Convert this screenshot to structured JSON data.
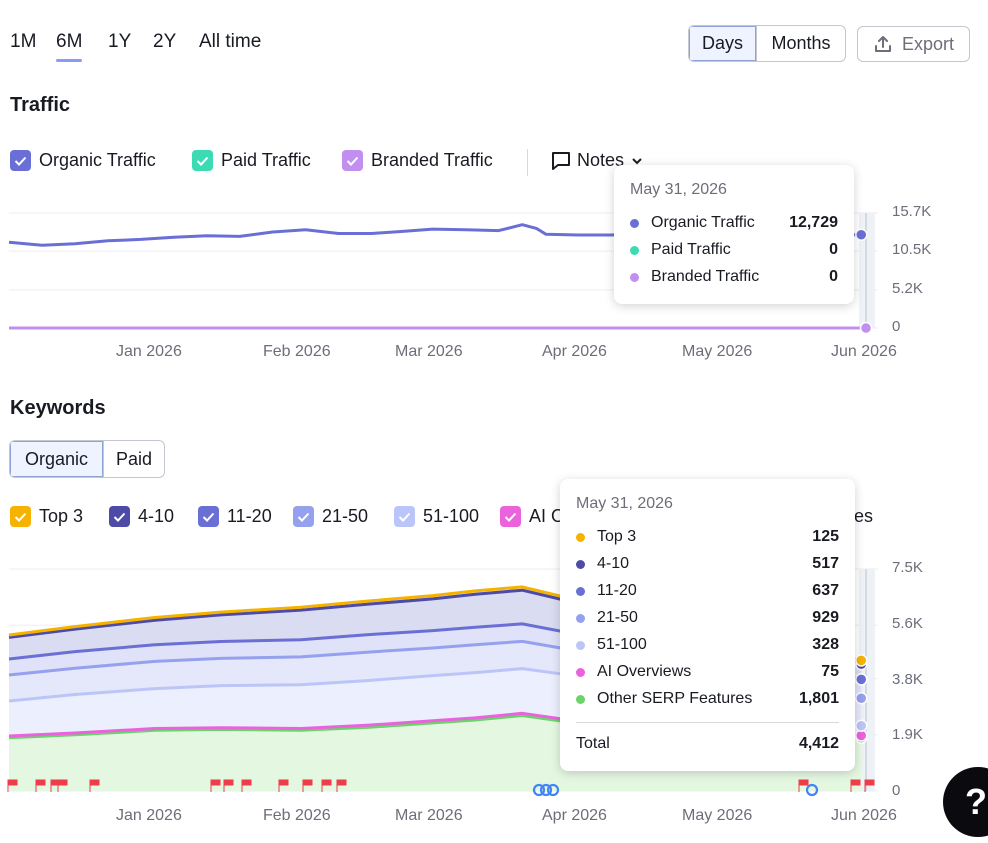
{
  "periods": {
    "p1m": "1M",
    "p6m": "6M",
    "p1y": "1Y",
    "p2y": "2Y",
    "all": "All time",
    "active": "6M"
  },
  "granularity": {
    "days": "Days",
    "months": "Months",
    "active": "Days"
  },
  "export": {
    "label": "Export",
    "icon": "upload-icon"
  },
  "traffic": {
    "title": "Traffic",
    "legend": {
      "organic": "Organic Traffic",
      "paid": "Paid Traffic",
      "branded": "Branded Traffic",
      "notes": "Notes"
    },
    "tooltip": {
      "date": "May 31, 2026",
      "rows": [
        {
          "label": "Organic Traffic",
          "value": "12,729",
          "color": "#6a6fd6"
        },
        {
          "label": "Paid Traffic",
          "value": "0",
          "color": "#3ddbb4"
        },
        {
          "label": "Branded Traffic",
          "value": "0",
          "color": "#c18ff0"
        }
      ]
    },
    "y_ticks": [
      "15.7K",
      "10.5K",
      "5.2K",
      "0"
    ],
    "x_ticks": [
      "Jan 2026",
      "Feb 2026",
      "Mar 2026",
      "Apr 2026",
      "May 2026",
      "Jun 2026"
    ]
  },
  "keywords": {
    "title": "Keywords",
    "tabs": {
      "organic": "Organic",
      "paid": "Paid",
      "active": "Organic"
    },
    "legend": {
      "top3": "Top 3",
      "r4_10": "4-10",
      "r11_20": "11-20",
      "r21_50": "21-50",
      "r51_100": "51-100",
      "ai_partial": "AI O",
      "serp_partial": "res"
    },
    "tooltip": {
      "date": "May 31, 2026",
      "rows": [
        {
          "label": "Top 3",
          "value": "125",
          "color": "#f5b300"
        },
        {
          "label": "4-10",
          "value": "517",
          "color": "#4d4aa8"
        },
        {
          "label": "11-20",
          "value": "637",
          "color": "#6a6fd6"
        },
        {
          "label": "21-50",
          "value": "929",
          "color": "#95a1ee"
        },
        {
          "label": "51-100",
          "value": "328",
          "color": "#bcc5f8"
        },
        {
          "label": "AI Overviews",
          "value": "75",
          "color": "#ea63dc"
        },
        {
          "label": "Other SERP Features",
          "value": "1,801",
          "color": "#6ad36a"
        }
      ],
      "total_label": "Total",
      "total_value": "4,412"
    },
    "y_ticks": [
      "7.5K",
      "5.6K",
      "3.8K",
      "1.9K",
      "0"
    ],
    "x_ticks": [
      "Jan 2026",
      "Feb 2026",
      "Mar 2026",
      "Apr 2026",
      "May 2026",
      "Jun 2026"
    ]
  },
  "help": {
    "label": "?"
  },
  "colors": {
    "organic": "#6a6fd6",
    "paid": "#3ddbb4",
    "branded": "#c18ff0",
    "top3": "#f5b300",
    "r4_10": "#4d4aa8",
    "r11_20": "#6a6fd6",
    "r21_50": "#95a1ee",
    "r51_100": "#bcc5f8",
    "ai": "#ea63dc",
    "serp": "#6ad36a",
    "accent": "#8a9bf2"
  },
  "chart_data": [
    {
      "type": "line",
      "title": "Traffic",
      "x_range": [
        "2025-12-01",
        "2026-05-31"
      ],
      "ylim": [
        0,
        15700
      ],
      "y_ticks": [
        0,
        5200,
        10500,
        15700
      ],
      "grid": true,
      "legend": "top-left",
      "series": [
        {
          "name": "Organic Traffic",
          "points": [
            [
              "2025-12-01",
              11700
            ],
            [
              "2025-12-08",
              11300
            ],
            [
              "2025-12-15",
              11500
            ],
            [
              "2025-12-22",
              11900
            ],
            [
              "2025-12-29",
              12100
            ],
            [
              "2026-01-05",
              12400
            ],
            [
              "2026-01-12",
              12600
            ],
            [
              "2026-01-19",
              12500
            ],
            [
              "2026-01-26",
              13100
            ],
            [
              "2026-02-02",
              13400
            ],
            [
              "2026-02-09",
              12900
            ],
            [
              "2026-02-16",
              12900
            ],
            [
              "2026-02-23",
              13200
            ],
            [
              "2026-03-01",
              13500
            ],
            [
              "2026-03-08",
              13400
            ],
            [
              "2026-03-15",
              13300
            ],
            [
              "2026-03-20",
              14100
            ],
            [
              "2026-03-23",
              13600
            ],
            [
              "2026-03-25",
              12800
            ],
            [
              "2026-04-01",
              12700
            ],
            [
              "2026-04-08",
              12700
            ],
            [
              "2026-04-15",
              13000
            ],
            [
              "2026-04-22",
              12800
            ],
            [
              "2026-05-31",
              12729
            ]
          ]
        },
        {
          "name": "Branded Traffic",
          "points": [
            [
              "2025-12-01",
              0
            ],
            [
              "2026-05-31",
              0
            ]
          ]
        },
        {
          "name": "Paid Traffic",
          "points": [
            [
              "2025-12-01",
              0
            ],
            [
              "2026-05-31",
              0
            ]
          ]
        }
      ]
    },
    {
      "type": "area",
      "title": "Keywords",
      "stacked": true,
      "x": [
        "2025-12-01",
        "2025-12-15",
        "2026-01-01",
        "2026-01-15",
        "2026-02-01",
        "2026-02-15",
        "2026-03-01",
        "2026-03-10",
        "2026-03-20",
        "2026-04-01",
        "2026-04-10",
        "2026-05-31"
      ],
      "ylim": [
        0,
        7500
      ],
      "y_ticks": [
        0,
        1900,
        3800,
        5600,
        7500
      ],
      "grid": true,
      "legend": "top-left",
      "series": [
        {
          "name": "Other SERP Features",
          "values": [
            1800,
            1900,
            2050,
            2080,
            2050,
            2150,
            2300,
            2400,
            2550,
            2280,
            1950,
            1801
          ]
        },
        {
          "name": "AI Overviews",
          "values": [
            60,
            60,
            60,
            60,
            60,
            70,
            70,
            70,
            75,
            75,
            75,
            75
          ]
        },
        {
          "name": "51-100",
          "values": [
            1180,
            1300,
            1350,
            1420,
            1480,
            1510,
            1530,
            1530,
            1510,
            1520,
            1300,
            328
          ]
        },
        {
          "name": "21-50",
          "values": [
            880,
            890,
            920,
            920,
            940,
            960,
            930,
            940,
            920,
            850,
            830,
            929
          ]
        },
        {
          "name": "11-20",
          "values": [
            540,
            560,
            560,
            570,
            580,
            590,
            590,
            590,
            590,
            560,
            540,
            637
          ]
        },
        {
          "name": "4-10",
          "values": [
            730,
            760,
            830,
            900,
            1000,
            1030,
            1070,
            1120,
            1140,
            1050,
            950,
            517
          ]
        },
        {
          "name": "Top 3",
          "values": [
            80,
            85,
            90,
            95,
            100,
            105,
            110,
            110,
            110,
            105,
            100,
            125
          ]
        }
      ],
      "total_on_last": 4412
    }
  ]
}
